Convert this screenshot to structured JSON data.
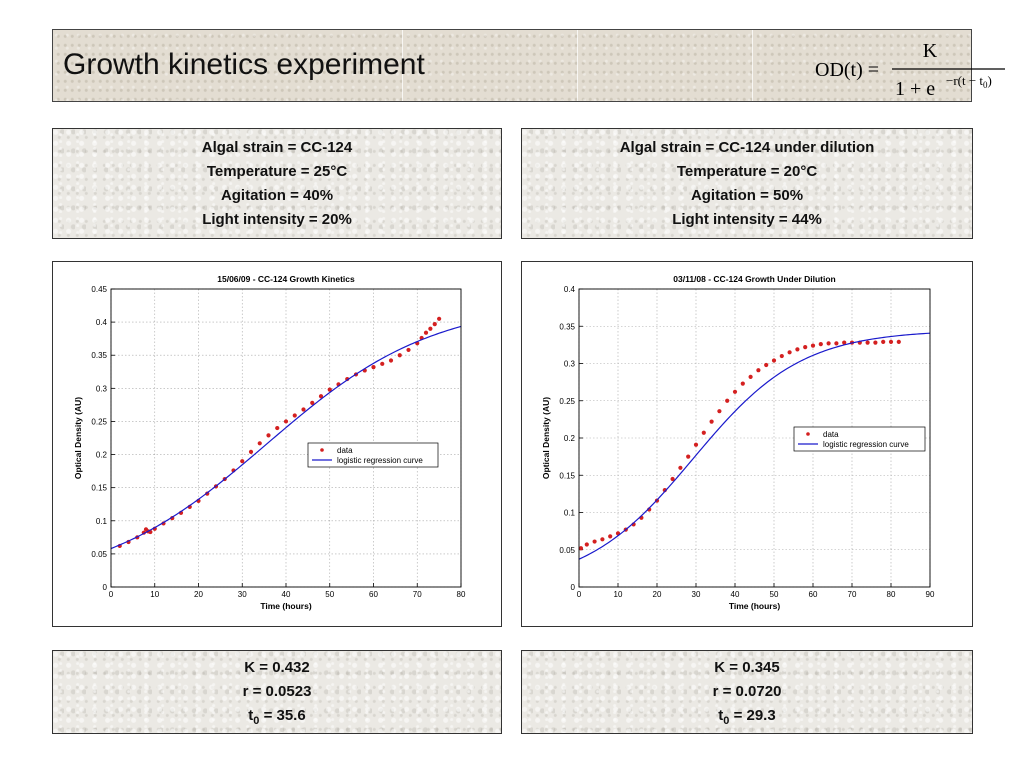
{
  "header": {
    "title": "Growth kinetics experiment",
    "formula": {
      "lhs": "OD(t) =",
      "numerator": "K",
      "denominator_base": "1 + e",
      "exponent_main": "−r(t − t",
      "exponent_sub": "0",
      "exponent_close": ")"
    }
  },
  "conditions": [
    {
      "lines": [
        "Algal strain = CC-124",
        "Temperature = 25°C",
        "Agitation = 40%",
        "Light intensity = 20%"
      ]
    },
    {
      "lines": [
        "Algal strain = CC-124 under dilution",
        "Temperature = 20°C",
        "Agitation = 50%",
        "Light intensity = 44%"
      ]
    }
  ],
  "parameters": [
    {
      "K": "K = 0.432",
      "r": "r = 0.0523",
      "t0_label": "t",
      "t0_sub": "0",
      "t0_value": " = 35.6"
    },
    {
      "K": "K = 0.345",
      "r": "r = 0.0720",
      "t0_label": "t",
      "t0_sub": "0",
      "t0_value": " = 29.3"
    }
  ],
  "chart_data": [
    {
      "type": "scatter",
      "title": "15/06/09 - CC-124 Growth Kinetics",
      "xlabel": "Time (hours)",
      "ylabel": "Optical Density (AU)",
      "xlim": [
        0,
        80
      ],
      "ylim": [
        0,
        0.45
      ],
      "xticks": [
        0,
        10,
        20,
        30,
        40,
        50,
        60,
        70,
        80
      ],
      "yticks": [
        0,
        0.05,
        0.1,
        0.15,
        0.2,
        0.25,
        0.3,
        0.35,
        0.4,
        0.45
      ],
      "grid": true,
      "legend_position": "center-right",
      "series": [
        {
          "name": "data",
          "style": "markers",
          "color": "#d42020",
          "x": [
            2,
            4,
            6,
            7.5,
            8,
            8.5,
            9,
            10,
            12,
            14,
            16,
            18,
            20,
            22,
            24,
            26,
            28,
            30,
            32,
            34,
            36,
            38,
            40,
            42,
            44,
            46,
            48,
            50,
            52,
            54,
            56,
            58,
            60,
            62,
            64,
            66,
            68,
            70,
            71,
            72,
            73,
            74,
            75
          ],
          "y": [
            0.062,
            0.068,
            0.075,
            0.082,
            0.087,
            0.084,
            0.083,
            0.088,
            0.096,
            0.104,
            0.112,
            0.121,
            0.13,
            0.141,
            0.152,
            0.163,
            0.176,
            0.19,
            0.204,
            0.217,
            0.229,
            0.24,
            0.25,
            0.259,
            0.268,
            0.278,
            0.288,
            0.298,
            0.306,
            0.314,
            0.321,
            0.327,
            0.332,
            0.337,
            0.342,
            0.35,
            0.358,
            0.368,
            0.376,
            0.384,
            0.39,
            0.397,
            0.405
          ]
        },
        {
          "name": "logistic regression curve",
          "style": "line",
          "color": "#1a1acc",
          "model": {
            "K": 0.432,
            "r": 0.0523,
            "t0": 35.6
          },
          "x_range": [
            0,
            80
          ]
        }
      ]
    },
    {
      "type": "scatter",
      "title": "03/11/08 - CC-124 Growth Under Dilution",
      "xlabel": "Time (hours)",
      "ylabel": "Optical Density (AU)",
      "xlim": [
        0,
        90
      ],
      "ylim": [
        0,
        0.4
      ],
      "xticks": [
        0,
        10,
        20,
        30,
        40,
        50,
        60,
        70,
        80,
        90
      ],
      "yticks": [
        0,
        0.05,
        0.1,
        0.15,
        0.2,
        0.25,
        0.3,
        0.35,
        0.4
      ],
      "grid": true,
      "legend_position": "center-right",
      "series": [
        {
          "name": "data",
          "style": "markers",
          "color": "#d42020",
          "x": [
            0.5,
            2,
            4,
            6,
            8,
            10,
            12,
            14,
            16,
            18,
            20,
            22,
            24,
            26,
            28,
            30,
            32,
            34,
            36,
            38,
            40,
            42,
            44,
            46,
            48,
            50,
            52,
            54,
            56,
            58,
            60,
            62,
            64,
            66,
            68,
            70,
            72,
            74,
            76,
            78,
            80,
            82
          ],
          "y": [
            0.052,
            0.057,
            0.061,
            0.064,
            0.068,
            0.072,
            0.077,
            0.084,
            0.093,
            0.104,
            0.116,
            0.13,
            0.145,
            0.16,
            0.175,
            0.191,
            0.207,
            0.222,
            0.236,
            0.25,
            0.262,
            0.273,
            0.282,
            0.291,
            0.298,
            0.304,
            0.31,
            0.315,
            0.319,
            0.322,
            0.324,
            0.326,
            0.327,
            0.327,
            0.328,
            0.328,
            0.328,
            0.328,
            0.328,
            0.329,
            0.329,
            0.329
          ]
        },
        {
          "name": "logistic regression curve",
          "style": "line",
          "color": "#1a1acc",
          "model": {
            "K": 0.345,
            "r": 0.072,
            "t0": 29.3
          },
          "x_range": [
            0,
            90
          ]
        }
      ]
    }
  ]
}
